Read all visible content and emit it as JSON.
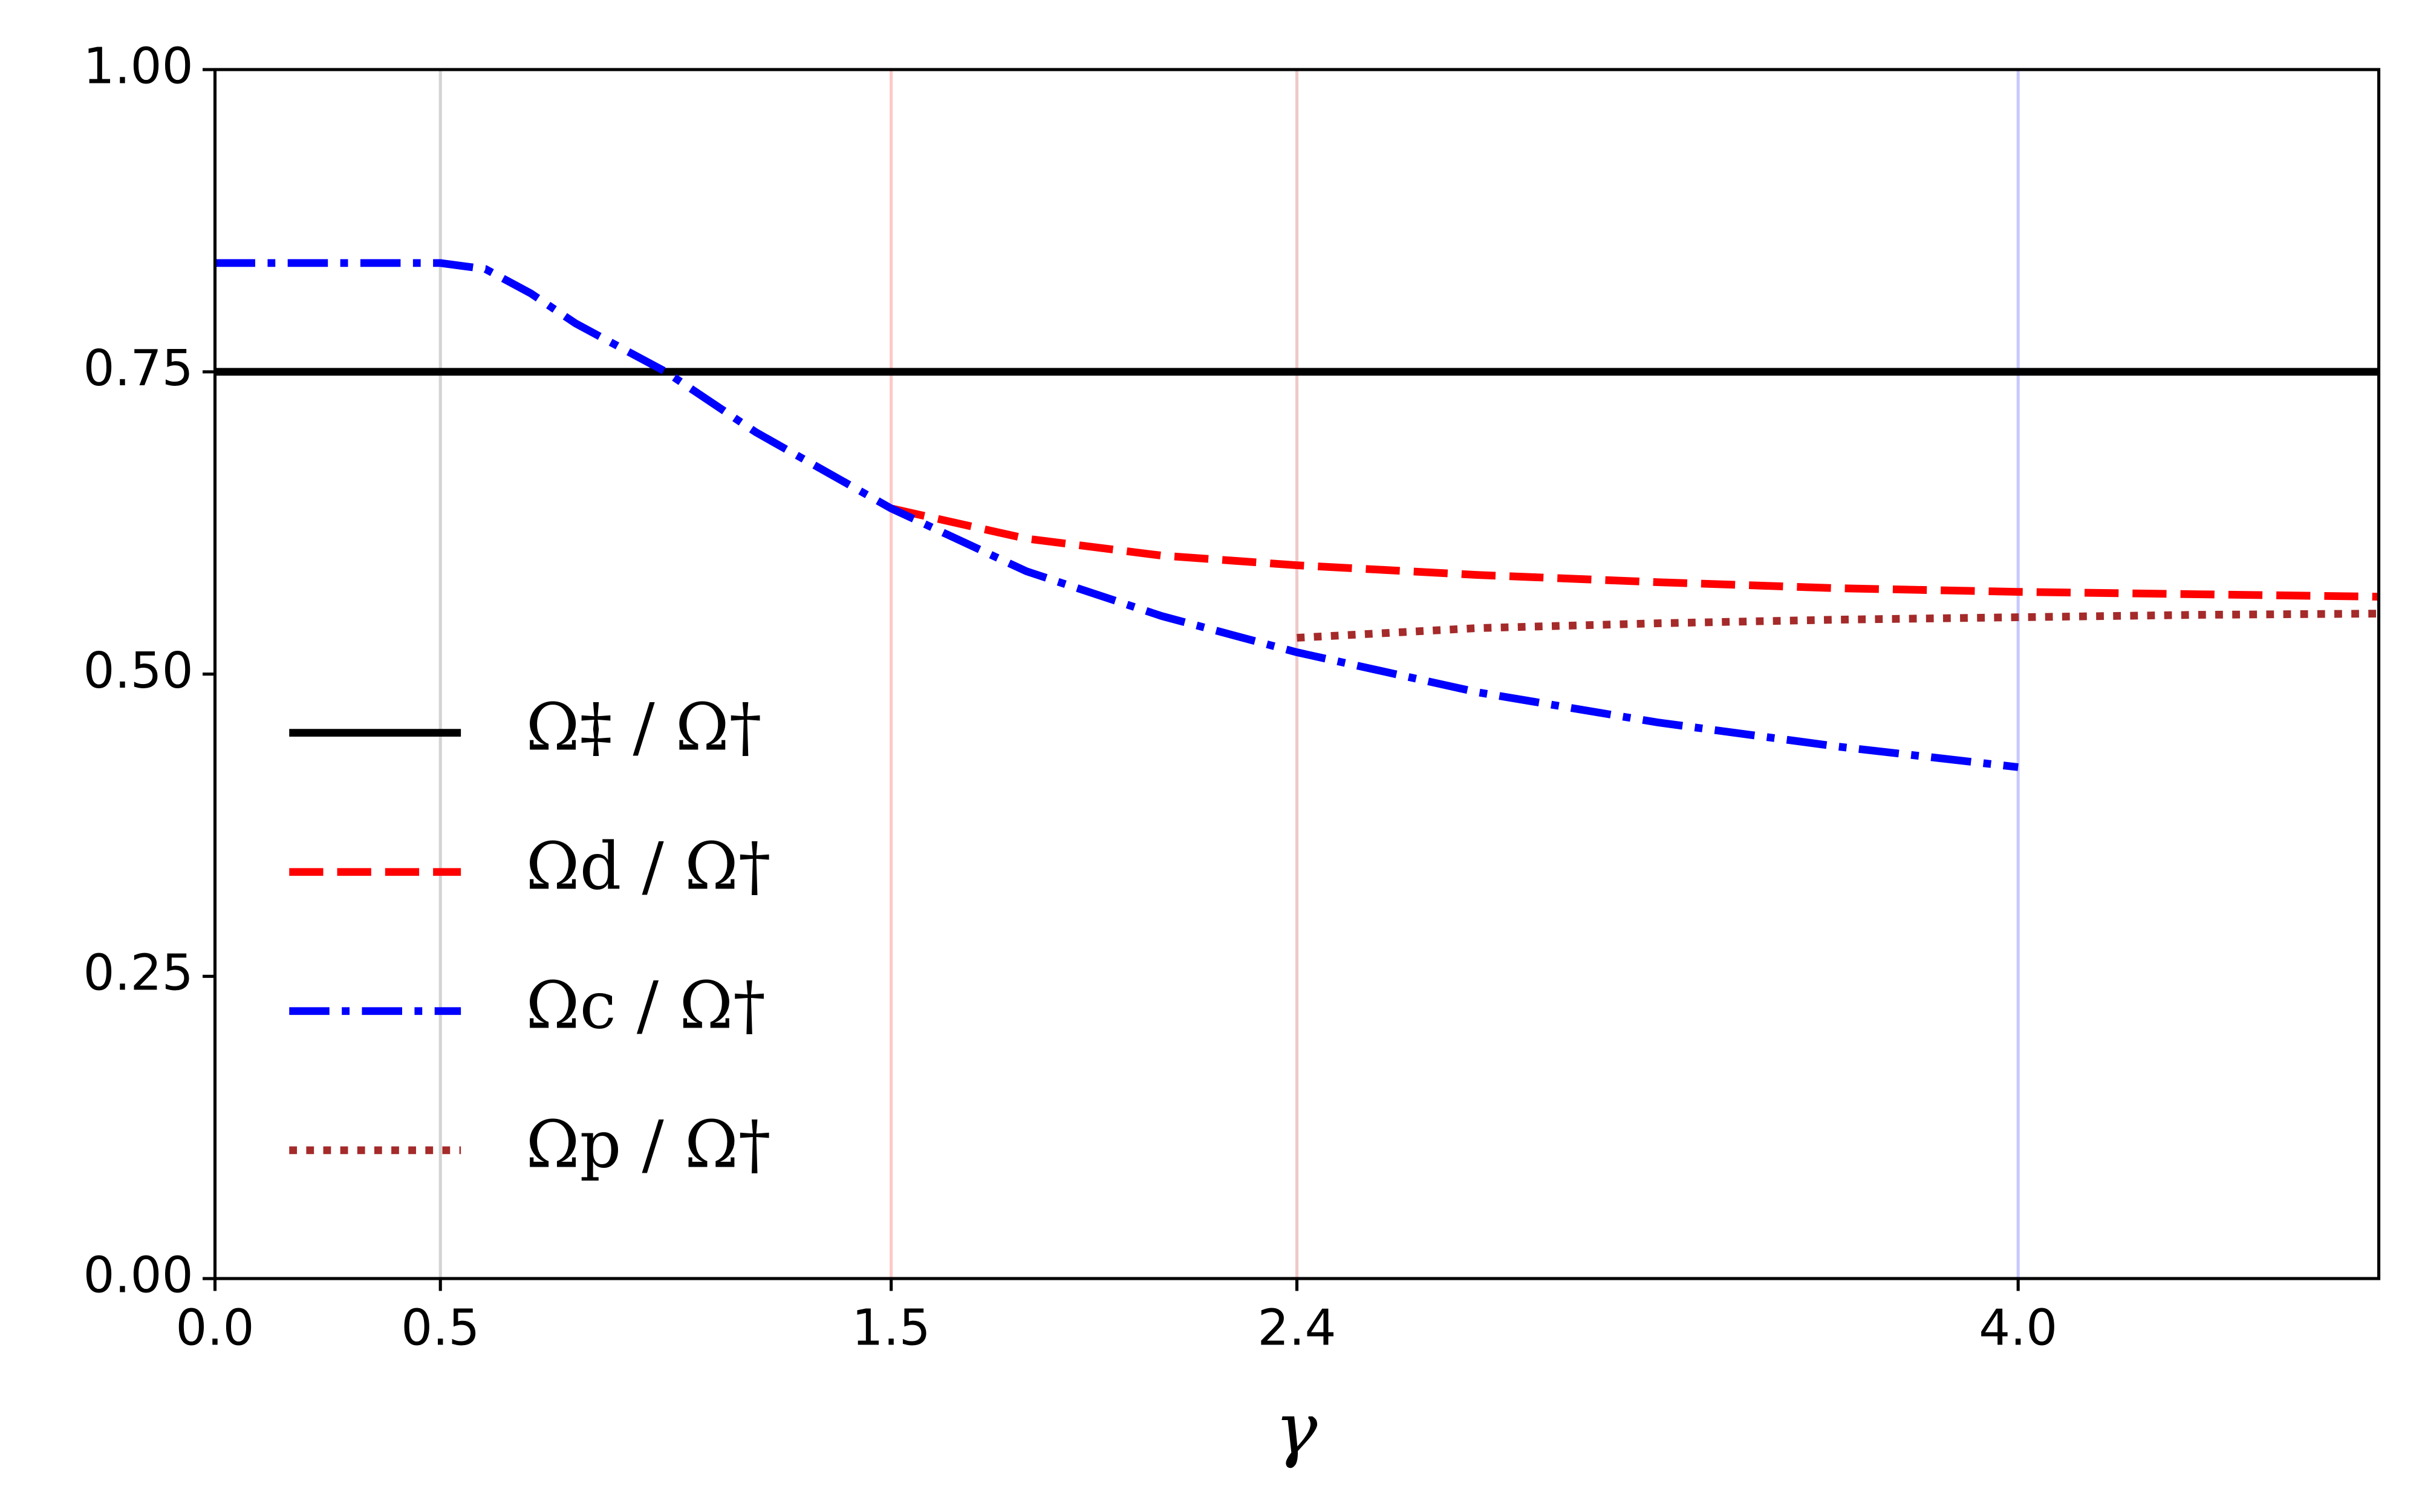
{
  "chart_data": {
    "type": "line",
    "x_label": "γ",
    "xlim": [
      0,
      4.8
    ],
    "ylim": [
      0,
      1
    ],
    "xticks": [
      {
        "value": 0,
        "label": "0.0"
      },
      0.5,
      1.5,
      2.4,
      {
        "value": 4,
        "label": "4.0"
      }
    ],
    "yticks": [
      {
        "value": 0,
        "label": "0.00"
      },
      {
        "value": 0.25,
        "label": "0.25"
      },
      {
        "value": 0.5,
        "label": "0.50"
      },
      {
        "value": 0.75,
        "label": "0.75"
      },
      {
        "value": 1,
        "label": "1.00"
      }
    ],
    "vlines": [
      {
        "value": 0.5,
        "color": "#d3d3d3"
      },
      {
        "value": 1.5,
        "color": "#ffc8c8"
      },
      {
        "value": 2.4,
        "color": "#f2c8c8"
      },
      {
        "value": 4,
        "color": "#c8c8ff"
      }
    ],
    "legend": "center left",
    "series": [
      {
        "name": "Ω‡ / Ω†",
        "color": "#000000",
        "linestyle": "solid",
        "x": [
          0,
          4.8
        ],
        "values": [
          0.75,
          0.75
        ]
      },
      {
        "name": "Ωd / Ω†",
        "color": "#ff0000",
        "linestyle": "dashed",
        "x": [
          1.5,
          1.8,
          2.1,
          2.4,
          2.8,
          3.2,
          3.6,
          4.0,
          4.4,
          4.8
        ],
        "values": [
          0.637,
          0.612,
          0.598,
          0.59,
          0.582,
          0.576,
          0.571,
          0.568,
          0.566,
          0.564
        ]
      },
      {
        "name": "Ωc / Ω†",
        "color": "#0000ff",
        "linestyle": "dashdot",
        "x": [
          0,
          0.5,
          0.6,
          0.7,
          0.8,
          0.9,
          1.0,
          1.2,
          1.5,
          1.8,
          2.1,
          2.4,
          2.8,
          3.2,
          3.6,
          4.0
        ],
        "values": [
          0.84,
          0.84,
          0.835,
          0.815,
          0.79,
          0.77,
          0.75,
          0.7,
          0.637,
          0.585,
          0.548,
          0.518,
          0.485,
          0.46,
          0.44,
          0.423
        ]
      },
      {
        "name": "Ωp / Ω†",
        "color": "#a52a2a",
        "linestyle": "dotted",
        "x": [
          2.4,
          2.8,
          3.2,
          3.6,
          4.0,
          4.4,
          4.8
        ],
        "values": [
          0.53,
          0.538,
          0.542,
          0.545,
          0.547,
          0.549,
          0.55
        ]
      }
    ]
  }
}
